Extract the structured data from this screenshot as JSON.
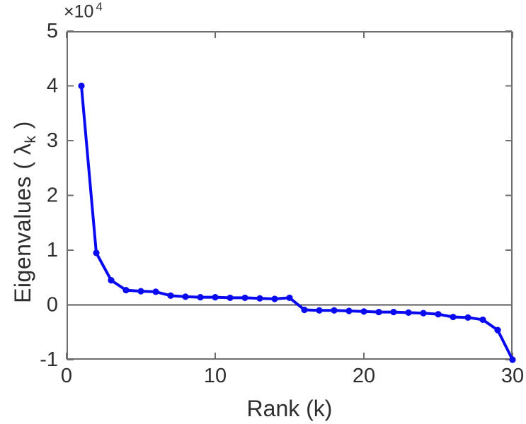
{
  "chart_data": {
    "type": "line",
    "title": "",
    "xlabel": "Rank (k)",
    "ylabel": "Eigenvalues ( λ_k )",
    "ylabel_parts": {
      "pre": "Eigenvalues ( λ",
      "sub": "k",
      "post": " )"
    },
    "y_multiplier": {
      "base": "×10",
      "exp": "4"
    },
    "x": [
      1,
      2,
      3,
      4,
      5,
      6,
      7,
      8,
      9,
      10,
      11,
      12,
      13,
      14,
      15,
      16,
      17,
      18,
      19,
      20,
      21,
      22,
      23,
      24,
      25,
      26,
      27,
      28,
      29,
      30
    ],
    "series": [
      {
        "name": "eigenvalues",
        "values_1e4": [
          4.0,
          0.95,
          0.45,
          0.27,
          0.25,
          0.24,
          0.17,
          0.15,
          0.14,
          0.14,
          0.13,
          0.13,
          0.12,
          0.11,
          0.13,
          -0.09,
          -0.1,
          -0.1,
          -0.11,
          -0.12,
          -0.13,
          -0.13,
          -0.14,
          -0.15,
          -0.17,
          -0.22,
          -0.23,
          -0.27,
          -0.46,
          -1.0
        ]
      }
    ],
    "xlim": [
      0,
      30
    ],
    "ylim_1e4": [
      -1,
      5
    ],
    "x_ticks": [
      0,
      10,
      20,
      30
    ],
    "y_ticks": [
      5,
      4,
      3,
      2,
      1,
      0,
      -1
    ],
    "grid": false,
    "legend": null,
    "zero_line": true,
    "marker": "dot",
    "colors": {
      "line": "#0a0af0",
      "axis": "#6e6e6e",
      "zero_line": "#5a5a5a",
      "text": "#2e2e2e",
      "background": "#ffffff"
    }
  }
}
